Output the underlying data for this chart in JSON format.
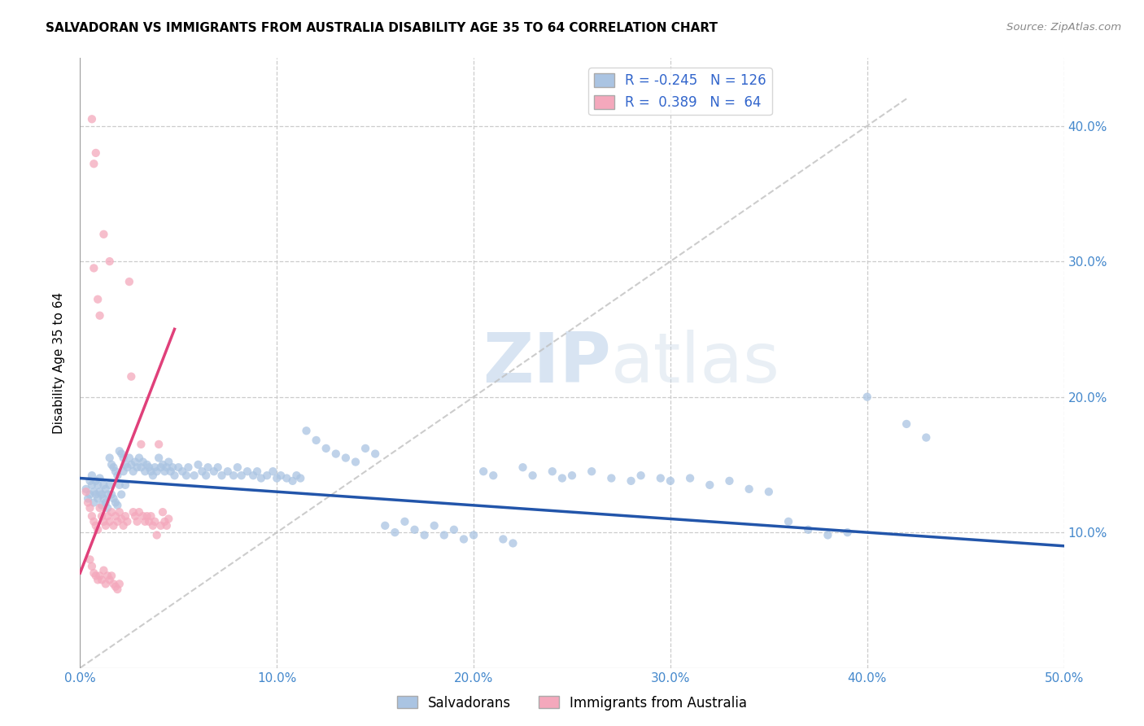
{
  "title": "SALVADORAN VS IMMIGRANTS FROM AUSTRALIA DISABILITY AGE 35 TO 64 CORRELATION CHART",
  "source": "Source: ZipAtlas.com",
  "ylabel": "Disability Age 35 to 64",
  "xlim": [
    0.0,
    0.5
  ],
  "ylim": [
    0.0,
    0.45
  ],
  "xticks": [
    0.0,
    0.1,
    0.2,
    0.3,
    0.4,
    0.5
  ],
  "yticks": [
    0.1,
    0.2,
    0.3,
    0.4
  ],
  "xtick_labels": [
    "0.0%",
    "10.0%",
    "20.0%",
    "30.0%",
    "40.0%",
    "50.0%"
  ],
  "ytick_labels": [
    "10.0%",
    "20.0%",
    "30.0%",
    "40.0%"
  ],
  "legend_labels": [
    "Salvadorans",
    "Immigrants from Australia"
  ],
  "r_blue": -0.245,
  "n_blue": 126,
  "r_pink": 0.389,
  "n_pink": 64,
  "color_blue": "#aac4e2",
  "color_pink": "#f4a8bc",
  "line_blue": "#2255aa",
  "line_pink": "#e0407a",
  "line_diag": "#c0c0c0",
  "watermark_zip": "ZIP",
  "watermark_atlas": "atlas",
  "background": "#ffffff",
  "blue_scatter": [
    [
      0.003,
      0.132
    ],
    [
      0.004,
      0.125
    ],
    [
      0.005,
      0.138
    ],
    [
      0.005,
      0.128
    ],
    [
      0.006,
      0.142
    ],
    [
      0.006,
      0.135
    ],
    [
      0.007,
      0.13
    ],
    [
      0.007,
      0.122
    ],
    [
      0.008,
      0.128
    ],
    [
      0.008,
      0.138
    ],
    [
      0.009,
      0.135
    ],
    [
      0.009,
      0.125
    ],
    [
      0.01,
      0.14
    ],
    [
      0.01,
      0.13
    ],
    [
      0.011,
      0.128
    ],
    [
      0.011,
      0.12
    ],
    [
      0.012,
      0.135
    ],
    [
      0.012,
      0.125
    ],
    [
      0.013,
      0.132
    ],
    [
      0.013,
      0.122
    ],
    [
      0.014,
      0.128
    ],
    [
      0.014,
      0.118
    ],
    [
      0.015,
      0.155
    ],
    [
      0.015,
      0.135
    ],
    [
      0.016,
      0.15
    ],
    [
      0.016,
      0.128
    ],
    [
      0.017,
      0.148
    ],
    [
      0.017,
      0.125
    ],
    [
      0.018,
      0.145
    ],
    [
      0.018,
      0.122
    ],
    [
      0.019,
      0.142
    ],
    [
      0.019,
      0.12
    ],
    [
      0.02,
      0.16
    ],
    [
      0.02,
      0.135
    ],
    [
      0.021,
      0.158
    ],
    [
      0.021,
      0.128
    ],
    [
      0.022,
      0.155
    ],
    [
      0.022,
      0.145
    ],
    [
      0.023,
      0.15
    ],
    [
      0.023,
      0.135
    ],
    [
      0.024,
      0.148
    ],
    [
      0.025,
      0.155
    ],
    [
      0.026,
      0.15
    ],
    [
      0.027,
      0.145
    ],
    [
      0.028,
      0.152
    ],
    [
      0.029,
      0.148
    ],
    [
      0.03,
      0.155
    ],
    [
      0.031,
      0.148
    ],
    [
      0.032,
      0.152
    ],
    [
      0.033,
      0.145
    ],
    [
      0.034,
      0.15
    ],
    [
      0.035,
      0.148
    ],
    [
      0.036,
      0.145
    ],
    [
      0.037,
      0.142
    ],
    [
      0.038,
      0.148
    ],
    [
      0.039,
      0.145
    ],
    [
      0.04,
      0.155
    ],
    [
      0.041,
      0.148
    ],
    [
      0.042,
      0.15
    ],
    [
      0.043,
      0.145
    ],
    [
      0.044,
      0.148
    ],
    [
      0.045,
      0.152
    ],
    [
      0.046,
      0.145
    ],
    [
      0.047,
      0.148
    ],
    [
      0.048,
      0.142
    ],
    [
      0.05,
      0.148
    ],
    [
      0.052,
      0.145
    ],
    [
      0.054,
      0.142
    ],
    [
      0.055,
      0.148
    ],
    [
      0.058,
      0.142
    ],
    [
      0.06,
      0.15
    ],
    [
      0.062,
      0.145
    ],
    [
      0.064,
      0.142
    ],
    [
      0.065,
      0.148
    ],
    [
      0.068,
      0.145
    ],
    [
      0.07,
      0.148
    ],
    [
      0.072,
      0.142
    ],
    [
      0.075,
      0.145
    ],
    [
      0.078,
      0.142
    ],
    [
      0.08,
      0.148
    ],
    [
      0.082,
      0.142
    ],
    [
      0.085,
      0.145
    ],
    [
      0.088,
      0.142
    ],
    [
      0.09,
      0.145
    ],
    [
      0.092,
      0.14
    ],
    [
      0.095,
      0.142
    ],
    [
      0.098,
      0.145
    ],
    [
      0.1,
      0.14
    ],
    [
      0.102,
      0.142
    ],
    [
      0.105,
      0.14
    ],
    [
      0.108,
      0.138
    ],
    [
      0.11,
      0.142
    ],
    [
      0.112,
      0.14
    ],
    [
      0.115,
      0.175
    ],
    [
      0.12,
      0.168
    ],
    [
      0.125,
      0.162
    ],
    [
      0.13,
      0.158
    ],
    [
      0.135,
      0.155
    ],
    [
      0.14,
      0.152
    ],
    [
      0.145,
      0.162
    ],
    [
      0.15,
      0.158
    ],
    [
      0.155,
      0.105
    ],
    [
      0.16,
      0.1
    ],
    [
      0.165,
      0.108
    ],
    [
      0.17,
      0.102
    ],
    [
      0.175,
      0.098
    ],
    [
      0.18,
      0.105
    ],
    [
      0.185,
      0.098
    ],
    [
      0.19,
      0.102
    ],
    [
      0.195,
      0.095
    ],
    [
      0.2,
      0.098
    ],
    [
      0.205,
      0.145
    ],
    [
      0.21,
      0.142
    ],
    [
      0.215,
      0.095
    ],
    [
      0.22,
      0.092
    ],
    [
      0.225,
      0.148
    ],
    [
      0.23,
      0.142
    ],
    [
      0.24,
      0.145
    ],
    [
      0.245,
      0.14
    ],
    [
      0.25,
      0.142
    ],
    [
      0.26,
      0.145
    ],
    [
      0.27,
      0.14
    ],
    [
      0.28,
      0.138
    ],
    [
      0.285,
      0.142
    ],
    [
      0.295,
      0.14
    ],
    [
      0.3,
      0.138
    ],
    [
      0.31,
      0.14
    ],
    [
      0.32,
      0.135
    ],
    [
      0.33,
      0.138
    ],
    [
      0.34,
      0.132
    ],
    [
      0.35,
      0.13
    ],
    [
      0.4,
      0.2
    ],
    [
      0.42,
      0.18
    ],
    [
      0.43,
      0.17
    ],
    [
      0.36,
      0.108
    ],
    [
      0.37,
      0.102
    ],
    [
      0.38,
      0.098
    ],
    [
      0.39,
      0.1
    ]
  ],
  "pink_scatter": [
    [
      0.003,
      0.13
    ],
    [
      0.004,
      0.122
    ],
    [
      0.005,
      0.118
    ],
    [
      0.005,
      0.08
    ],
    [
      0.006,
      0.112
    ],
    [
      0.006,
      0.075
    ],
    [
      0.007,
      0.108
    ],
    [
      0.007,
      0.07
    ],
    [
      0.008,
      0.105
    ],
    [
      0.008,
      0.068
    ],
    [
      0.009,
      0.102
    ],
    [
      0.009,
      0.065
    ],
    [
      0.01,
      0.118
    ],
    [
      0.01,
      0.068
    ],
    [
      0.011,
      0.112
    ],
    [
      0.011,
      0.065
    ],
    [
      0.012,
      0.108
    ],
    [
      0.012,
      0.072
    ],
    [
      0.013,
      0.105
    ],
    [
      0.013,
      0.062
    ],
    [
      0.014,
      0.112
    ],
    [
      0.014,
      0.068
    ],
    [
      0.015,
      0.108
    ],
    [
      0.015,
      0.065
    ],
    [
      0.016,
      0.115
    ],
    [
      0.016,
      0.068
    ],
    [
      0.017,
      0.105
    ],
    [
      0.017,
      0.062
    ],
    [
      0.018,
      0.112
    ],
    [
      0.018,
      0.06
    ],
    [
      0.019,
      0.108
    ],
    [
      0.019,
      0.058
    ],
    [
      0.02,
      0.115
    ],
    [
      0.02,
      0.062
    ],
    [
      0.021,
      0.11
    ],
    [
      0.022,
      0.105
    ],
    [
      0.023,
      0.112
    ],
    [
      0.024,
      0.108
    ],
    [
      0.025,
      0.285
    ],
    [
      0.026,
      0.215
    ],
    [
      0.027,
      0.115
    ],
    [
      0.028,
      0.112
    ],
    [
      0.029,
      0.108
    ],
    [
      0.03,
      0.115
    ],
    [
      0.031,
      0.165
    ],
    [
      0.032,
      0.112
    ],
    [
      0.033,
      0.108
    ],
    [
      0.034,
      0.112
    ],
    [
      0.035,
      0.108
    ],
    [
      0.036,
      0.112
    ],
    [
      0.037,
      0.105
    ],
    [
      0.038,
      0.108
    ],
    [
      0.039,
      0.098
    ],
    [
      0.04,
      0.165
    ],
    [
      0.041,
      0.105
    ],
    [
      0.042,
      0.115
    ],
    [
      0.043,
      0.108
    ],
    [
      0.044,
      0.105
    ],
    [
      0.045,
      0.11
    ],
    [
      0.006,
      0.405
    ],
    [
      0.007,
      0.372
    ],
    [
      0.008,
      0.38
    ],
    [
      0.007,
      0.295
    ],
    [
      0.009,
      0.272
    ],
    [
      0.01,
      0.26
    ],
    [
      0.012,
      0.32
    ],
    [
      0.015,
      0.3
    ]
  ],
  "blue_trendline": [
    [
      0.0,
      0.14
    ],
    [
      0.5,
      0.09
    ]
  ],
  "pink_trendline": [
    [
      0.0,
      0.07
    ],
    [
      0.048,
      0.25
    ]
  ],
  "diag_line": [
    [
      0.0,
      0.0
    ],
    [
      0.42,
      0.42
    ]
  ]
}
